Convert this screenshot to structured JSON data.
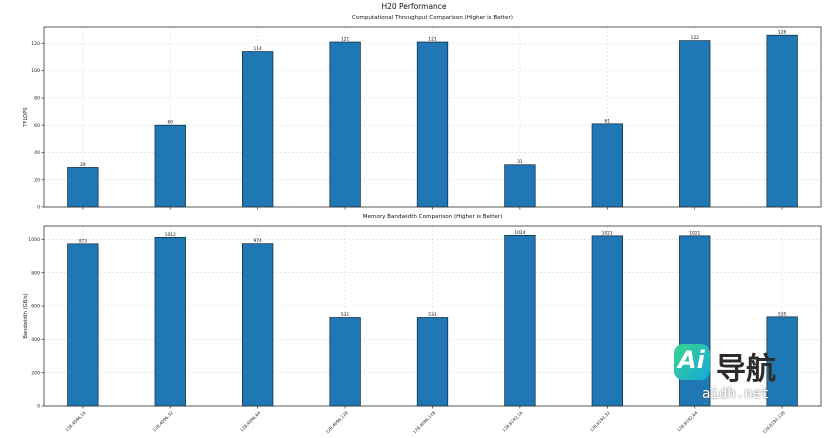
{
  "figure": {
    "suptitle": "H20 Performance"
  },
  "chart_data": [
    {
      "type": "bar",
      "title": "Computational Throughput Comparison (Higher is Better)",
      "xlabel": "",
      "ylabel": "TFLOPS",
      "ylim": [
        0,
        132
      ],
      "yticks": [
        0,
        20,
        40,
        60,
        80,
        100,
        120
      ],
      "grid": true,
      "categories": [
        "128,4096,16",
        "128,4096,32",
        "128,4096,64",
        "128,4096,128",
        "128,4096,128",
        "128,8192,16",
        "128,8192,32",
        "128,8192,64",
        "128,8192,128"
      ],
      "values": [
        29,
        60,
        114,
        121,
        121,
        31,
        61,
        122,
        126
      ],
      "value_labels": [
        "29",
        "60",
        "114",
        "121",
        "121",
        "31",
        "61",
        "122",
        "126"
      ],
      "bar_color": "#1f77b4"
    },
    {
      "type": "bar",
      "title": "Memory Bandwidth Comparison (Higher is Better)",
      "xlabel": "",
      "ylabel": "Bandwidth (GB/s)",
      "ylim": [
        0,
        1080
      ],
      "yticks": [
        0,
        200,
        400,
        600,
        800,
        1000
      ],
      "grid": true,
      "categories": [
        "128,4096,16",
        "128,4096,32",
        "128,4096,64",
        "128,4096,128",
        "128,4096,128",
        "128,8192,16",
        "128,8192,32",
        "128,8192,64",
        "128,8192,128"
      ],
      "values": [
        973,
        1012,
        974,
        531,
        531,
        1024,
        1021,
        1021,
        535
      ],
      "value_labels": [
        "973",
        "1012",
        "974",
        "531",
        "531",
        "1024",
        "1021",
        "1021",
        "535"
      ],
      "bar_color": "#1f77b4"
    }
  ],
  "watermark": {
    "logo_text": "Ai",
    "brand": "导航",
    "url": "aidh.net"
  }
}
